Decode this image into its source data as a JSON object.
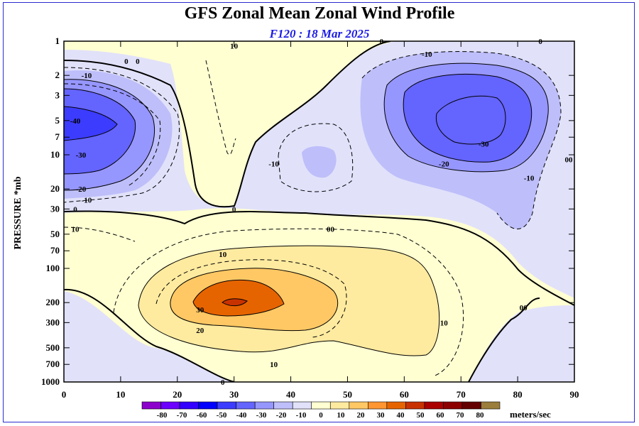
{
  "chart_data": {
    "type": "contour",
    "title": "GFS Zonal Mean Zonal Wind Profile",
    "subtitle": "F120 : 18 Mar 2025",
    "ylabel": "PRESSURE *mb",
    "xlabel": "",
    "xlim": [
      0,
      90
    ],
    "x_ticks": [
      0,
      10,
      20,
      30,
      40,
      50,
      60,
      70,
      80,
      90
    ],
    "y_ticks": [
      1,
      2,
      3,
      5,
      7,
      10,
      20,
      30,
      50,
      70,
      100,
      200,
      300,
      500,
      700,
      1000
    ],
    "y_scale": "log",
    "ylim": [
      1000,
      1
    ],
    "colorbar": {
      "levels": [
        -80,
        -70,
        -60,
        -50,
        -40,
        -30,
        -20,
        -10,
        0,
        10,
        20,
        30,
        40,
        50,
        60,
        70,
        80
      ],
      "colors": [
        "#8c00cc",
        "#6b00ff",
        "#3200ff",
        "#0000ff",
        "#3c3cff",
        "#6464ff",
        "#9696ff",
        "#bebefa",
        "#e1e1fa",
        "#ffffd2",
        "#ffeba0",
        "#ffc864",
        "#ff9632",
        "#e66400",
        "#c83200",
        "#aa0000",
        "#8c0000",
        "#640000",
        "#9b7d3c"
      ],
      "units": "meters/sec"
    },
    "features": [
      {
        "label": "-40",
        "lat": 2,
        "pressure": 5
      },
      {
        "label": "-30",
        "lat": 3,
        "pressure": 10
      },
      {
        "label": "-20",
        "lat": 3,
        "pressure": 20
      },
      {
        "label": "-10",
        "lat": 4,
        "pressure": 25
      },
      {
        "label": "-10",
        "lat": 4,
        "pressure": 2
      },
      {
        "label": "0",
        "lat": 11,
        "pressure": 1.5
      },
      {
        "label": "0",
        "lat": 13,
        "pressure": 1.5
      },
      {
        "label": "0",
        "lat": 2,
        "pressure": 30
      },
      {
        "label": "10",
        "lat": 30,
        "pressure": 1.1
      },
      {
        "label": "10",
        "lat": 2,
        "pressure": 45
      },
      {
        "label": "0",
        "lat": 30,
        "pressure": 30
      },
      {
        "label": "-10",
        "lat": 37,
        "pressure": 12
      },
      {
        "label": "00",
        "lat": 47,
        "pressure": 45
      },
      {
        "label": "0",
        "lat": 56,
        "pressure": 1
      },
      {
        "label": "-10",
        "lat": 64,
        "pressure": 1.3
      },
      {
        "label": "-30",
        "lat": 74,
        "pressure": 8
      },
      {
        "label": "-20",
        "lat": 67,
        "pressure": 12
      },
      {
        "label": "-10",
        "lat": 82,
        "pressure": 16
      },
      {
        "label": "0",
        "lat": 84,
        "pressure": 1
      },
      {
        "label": "00",
        "lat": 89,
        "pressure": 11
      },
      {
        "label": "10",
        "lat": 28,
        "pressure": 75
      },
      {
        "label": "30",
        "lat": 24,
        "pressure": 230
      },
      {
        "label": "20",
        "lat": 24,
        "pressure": 350
      },
      {
        "label": "10",
        "lat": 37,
        "pressure": 700
      },
      {
        "label": "10",
        "lat": 67,
        "pressure": 300
      },
      {
        "label": "00",
        "lat": 81,
        "pressure": 220
      },
      {
        "label": "0",
        "lat": 28,
        "pressure": 1000
      }
    ]
  }
}
